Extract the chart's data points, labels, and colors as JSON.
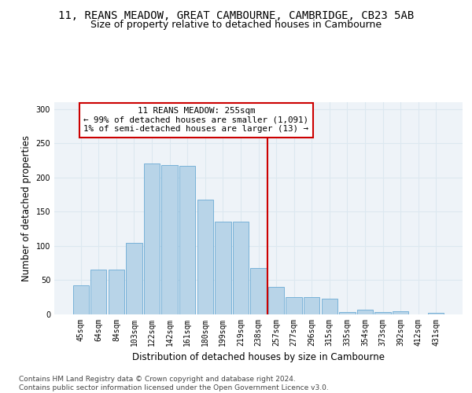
{
  "title": "11, REANS MEADOW, GREAT CAMBOURNE, CAMBRIDGE, CB23 5AB",
  "subtitle": "Size of property relative to detached houses in Cambourne",
  "xlabel": "Distribution of detached houses by size in Cambourne",
  "ylabel": "Number of detached properties",
  "bar_values": [
    43,
    65,
    65,
    105,
    220,
    218,
    217,
    168,
    135,
    135,
    68,
    40,
    25,
    25,
    23,
    4,
    7,
    3,
    5,
    0,
    2
  ],
  "categories": [
    "45sqm",
    "64sqm",
    "84sqm",
    "103sqm",
    "122sqm",
    "142sqm",
    "161sqm",
    "180sqm",
    "199sqm",
    "219sqm",
    "238sqm",
    "257sqm",
    "277sqm",
    "296sqm",
    "315sqm",
    "335sqm",
    "354sqm",
    "373sqm",
    "392sqm",
    "412sqm",
    "431sqm"
  ],
  "bar_color": "#b8d4e8",
  "bar_edge_color": "#6aaad4",
  "grid_color": "#dce8f0",
  "background_color": "#eef3f8",
  "vline_bin_index": 11,
  "vline_color": "#cc0000",
  "annotation_text": "11 REANS MEADOW: 255sqm\n← 99% of detached houses are smaller (1,091)\n1% of semi-detached houses are larger (13) →",
  "annotation_box_color": "#cc0000",
  "ylim": [
    0,
    310
  ],
  "yticks": [
    0,
    50,
    100,
    150,
    200,
    250,
    300
  ],
  "footer": "Contains HM Land Registry data © Crown copyright and database right 2024.\nContains public sector information licensed under the Open Government Licence v3.0.",
  "title_fontsize": 10,
  "subtitle_fontsize": 9,
  "xlabel_fontsize": 8.5,
  "ylabel_fontsize": 8.5,
  "tick_fontsize": 7,
  "footer_fontsize": 6.5
}
